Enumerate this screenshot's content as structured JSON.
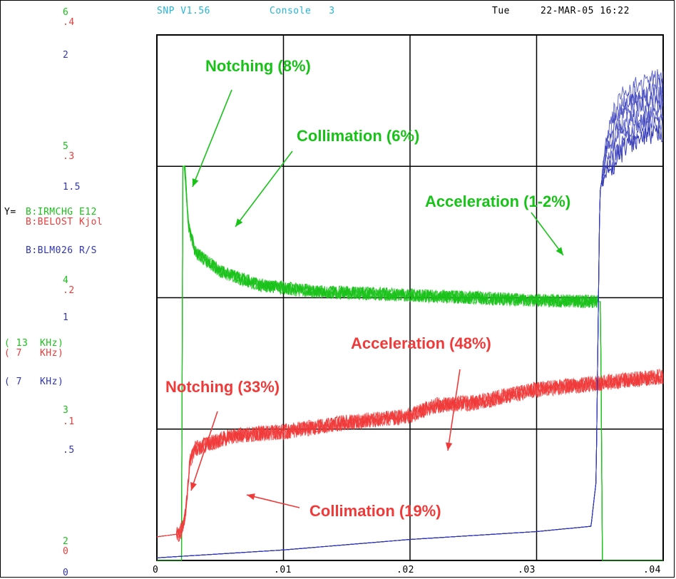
{
  "header": {
    "version": "SNP V1.56",
    "console": "Console   3",
    "day": "Tue",
    "datetime": "22-MAR-05 16:22"
  },
  "colors": {
    "green": "#19c219",
    "red": "#f03a3a",
    "blue": "#2f35b6",
    "cyan": "#22b6d6"
  },
  "left_panel": {
    "green_ticks": [
      "6",
      "5",
      "4",
      "3",
      "2"
    ],
    "red_ticks": [
      ".4",
      ".3",
      ".2",
      ".1",
      "0"
    ],
    "blue_ticks": [
      "2",
      "1.5",
      "1",
      ".5",
      "0"
    ],
    "y_prefix": "Y=",
    "channels": [
      {
        "name": "B:IRMCHG E12",
        "color": "green"
      },
      {
        "name": "B:BELOST Kjol",
        "color": "red"
      },
      {
        "name": "B:BLM026 R/S",
        "color": "blue"
      }
    ],
    "rates": [
      {
        "text": "( 13  KHz)",
        "color": "green"
      },
      {
        "text": "( 7   KHz)",
        "color": "red"
      },
      {
        "text": "( 7   KHz)",
        "color": "blue"
      }
    ]
  },
  "x_ticks": [
    "0",
    ".01",
    ".02",
    ".03",
    ".04"
  ],
  "annotations": {
    "green": [
      "Notching (8%)",
      "Collimation (6%)",
      "Acceleration (1-2%)"
    ],
    "red": [
      "Acceleration (48%)",
      "Notching (33%)",
      "Collimation (19%)"
    ]
  },
  "chart_data": {
    "type": "line",
    "xlim": [
      0,
      0.04
    ],
    "grid": true,
    "series": [
      {
        "name": "B:IRMCHG E12",
        "color": "#19c219",
        "ylim": [
          2,
          6
        ],
        "x": [
          0,
          0.00195,
          0.00205,
          0.0022,
          0.0025,
          0.003,
          0.005,
          0.008,
          0.012,
          0.02,
          0.03,
          0.0345,
          0.03505,
          0.0352,
          0.04
        ],
        "y": [
          2,
          2,
          5.0,
          5.0,
          4.55,
          4.35,
          4.2,
          4.1,
          4.05,
          4.02,
          3.98,
          3.97,
          3.97,
          2,
          2
        ]
      },
      {
        "name": "B:BELOST Kjol",
        "color": "#f03a3a",
        "ylim": [
          0,
          0.4
        ],
        "x": [
          0,
          0.0016,
          0.0018,
          0.0022,
          0.0026,
          0.003,
          0.006,
          0.01,
          0.015,
          0.02,
          0.022,
          0.025,
          0.03,
          0.035,
          0.04
        ],
        "y": [
          0.018,
          0.02,
          0.02,
          0.03,
          0.075,
          0.085,
          0.095,
          0.098,
          0.105,
          0.11,
          0.118,
          0.12,
          0.13,
          0.135,
          0.14
        ]
      },
      {
        "name": "B:BLM026 R/S",
        "color": "#2f35b6",
        "ylim": [
          0,
          2
        ],
        "x": [
          0,
          0.01,
          0.02,
          0.03,
          0.0343,
          0.0347,
          0.035,
          0.0355,
          0.037,
          0.04
        ],
        "y": [
          0.01,
          0.04,
          0.08,
          0.11,
          0.13,
          0.3,
          1.4,
          1.55,
          1.7,
          1.75
        ]
      }
    ]
  }
}
